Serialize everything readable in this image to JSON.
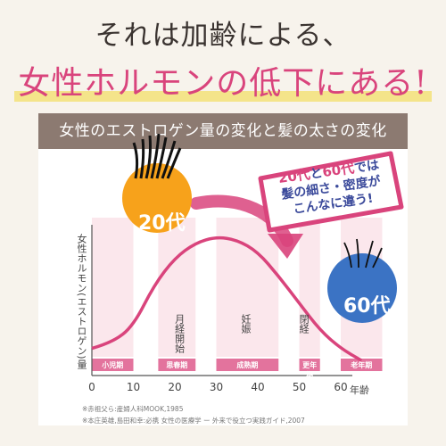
{
  "headline": {
    "line1": "それは加齢による、",
    "line2": "女性ホルモンの低下にある!"
  },
  "chart_data": {
    "type": "line",
    "title": "女性のエストロゲン量の変化と髪の太さの変化",
    "ylabel": "女性ホルモン(エストロゲン)量",
    "xlabel": "年齢",
    "xticks": [
      0,
      10,
      20,
      30,
      40,
      50,
      60
    ],
    "xlim": [
      0,
      70
    ],
    "x": [
      0,
      5,
      10,
      15,
      20,
      25,
      30,
      35,
      40,
      45,
      50,
      55,
      60,
      65
    ],
    "y": [
      0.18,
      0.22,
      0.33,
      0.6,
      0.78,
      0.88,
      0.92,
      0.9,
      0.82,
      0.66,
      0.48,
      0.3,
      0.18,
      0.1
    ],
    "stages": [
      {
        "label": "小児期",
        "start": 0,
        "end": 10
      },
      {
        "label": "思春期",
        "start": 16,
        "end": 25
      },
      {
        "label": "成熟期",
        "start": 30,
        "end": 45
      },
      {
        "label": "更年期",
        "start": 50,
        "end": 55
      },
      {
        "label": "老年期",
        "start": 60,
        "end": 70
      }
    ],
    "events": [
      {
        "label": "月経開始",
        "x": 21
      },
      {
        "label": "妊娠",
        "x": 37
      },
      {
        "label": "閉経",
        "x": 51
      }
    ],
    "ages": [
      "20代",
      "60代"
    ],
    "callout": {
      "part1_num": "20代",
      "part1_mid": "と",
      "part1_num2": "60代",
      "part1_end": "では",
      "line2": "髪の細さ・密度が",
      "line3": "こんなに違う!"
    },
    "notes": [
      "※赤祖父ら:産婦人科MOOK,1985",
      "※本庄英雄,島田和幸:必携 女性の医療学 ー 外来で役立つ実践ガイド,2007"
    ]
  },
  "colors": {
    "pink": "#d9447c",
    "band": "#fbe7ec",
    "orange": "#f7a21b",
    "blue": "#3b73c4",
    "title_bar": "#8c7a71"
  }
}
